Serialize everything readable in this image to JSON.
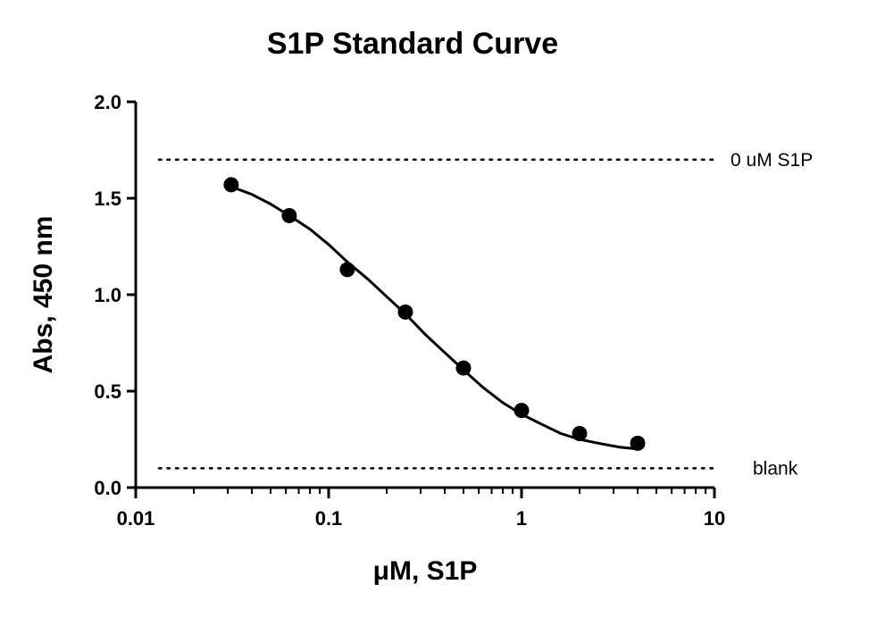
{
  "chart_data": {
    "type": "scatter",
    "title": "S1P Standard Curve",
    "xlabel": "μM, S1P",
    "ylabel": "Abs, 450 nm",
    "xscale": "log",
    "xlim": [
      0.01,
      10
    ],
    "ylim": [
      0.0,
      2.0
    ],
    "x_ticks": [
      0.01,
      0.1,
      1,
      10
    ],
    "x_tick_labels": [
      "0.01",
      "0.1",
      "1",
      "10"
    ],
    "y_ticks": [
      0.0,
      0.5,
      1.0,
      1.5,
      2.0
    ],
    "y_tick_labels": [
      "0.0",
      "0.5",
      "1.0",
      "1.5",
      "2.0"
    ],
    "grid": false,
    "series": [
      {
        "type": "scatter",
        "x": [
          0.03125,
          0.0625,
          0.125,
          0.25,
          0.5,
          1,
          2,
          4
        ],
        "y": [
          1.57,
          1.41,
          1.13,
          0.91,
          0.62,
          0.4,
          0.28,
          0.23
        ]
      },
      {
        "type": "line",
        "fit": "four-parameter logistic",
        "x": [
          0.03125,
          0.04,
          0.05,
          0.0625,
          0.08,
          0.1,
          0.125,
          0.16,
          0.2,
          0.25,
          0.32,
          0.4,
          0.5,
          0.63,
          0.8,
          1.0,
          1.26,
          1.6,
          2.0,
          2.5,
          3.2,
          4.0
        ],
        "y": [
          1.56,
          1.52,
          1.47,
          1.41,
          1.34,
          1.26,
          1.17,
          1.08,
          0.99,
          0.9,
          0.79,
          0.7,
          0.61,
          0.52,
          0.44,
          0.38,
          0.33,
          0.28,
          0.25,
          0.23,
          0.21,
          0.2
        ]
      }
    ],
    "reference_lines": [
      {
        "y": 1.7,
        "label": "0 uM S1P",
        "style": "dotted"
      },
      {
        "y": 0.1,
        "label": "blank",
        "style": "dotted"
      }
    ]
  }
}
